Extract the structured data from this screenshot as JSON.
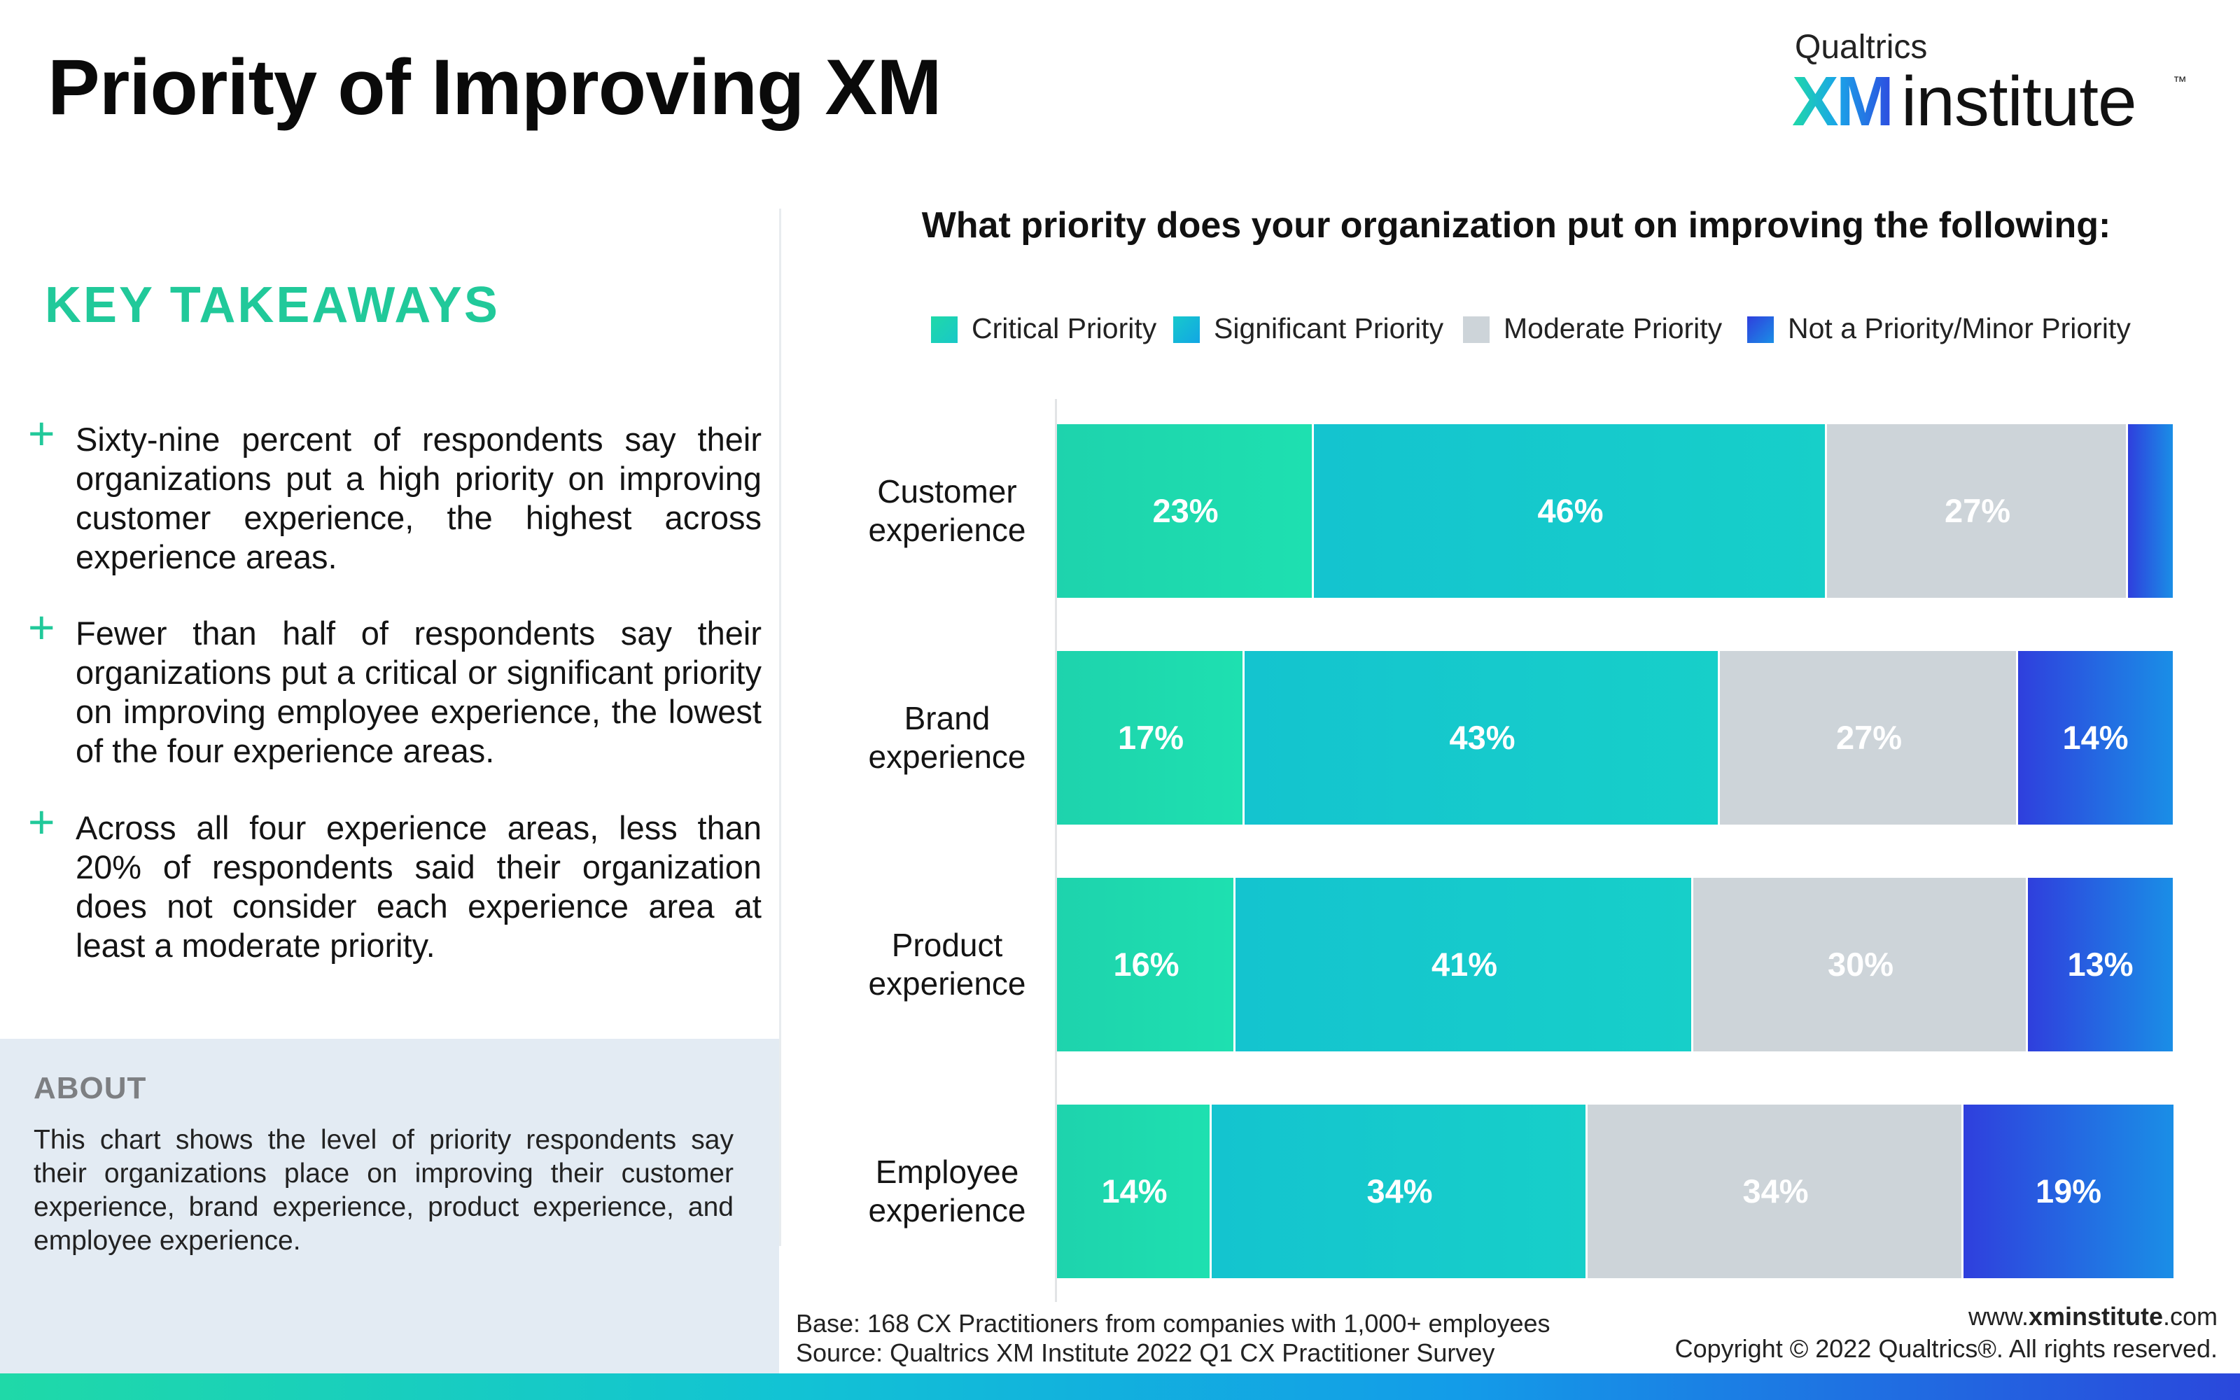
{
  "page_title": "Priority of Improving XM",
  "logo": {
    "brand": "Qualtrics",
    "xm": "XM",
    "institute": "institute",
    "tm": "™"
  },
  "takeaways": {
    "title": "KEY TAKEAWAYS",
    "items": [
      "Sixty-nine percent of respondents say their organizations put a high priority on improving customer experience, the highest across experience areas.",
      "Fewer than half of respondents say their organizations put a critical or significant priority on improving employee experience, the lowest of the four experience areas.",
      "Across all four experience areas, less than 20% of respondents said their organization does not consider each experience area at least a moderate priority."
    ]
  },
  "about": {
    "title": "ABOUT",
    "text": "This chart shows the level of priority respondents say their organizations place on improving their customer experience, brand experience, product experience, and employee experience."
  },
  "chart_data": {
    "type": "bar",
    "orientation": "horizontal",
    "stacked": true,
    "normalized": true,
    "title": "What priority does your organization put on improving the following:",
    "categories": [
      "Customer experience",
      "Brand experience",
      "Product experience",
      "Employee experience"
    ],
    "series": [
      {
        "name": "Critical Priority",
        "color": "#1ed6ae",
        "values": [
          23,
          17,
          16,
          14
        ],
        "labels": [
          "23%",
          "17%",
          "16%",
          "14%"
        ]
      },
      {
        "name": "Significant Priority",
        "color": "#14c7d1",
        "values": [
          46,
          43,
          41,
          34
        ],
        "labels": [
          "46%",
          "43%",
          "41%",
          "34%"
        ]
      },
      {
        "name": "Moderate Priority",
        "color": "#cdd4d9",
        "values": [
          27,
          27,
          30,
          34
        ],
        "labels": [
          "27%",
          "27%",
          "30%",
          "34%"
        ]
      },
      {
        "name": "Not a Priority/Minor Priority",
        "color": "#2f54e0",
        "values": [
          4,
          14,
          13,
          19
        ],
        "labels": [
          "",
          "14%",
          "13%",
          "19%"
        ]
      }
    ],
    "xlim": [
      0,
      100
    ],
    "legend_position": "top",
    "grid": false
  },
  "footer": {
    "base": "Base: 168 CX Practitioners from companies with 1,000+ employees",
    "source": "Source: Qualtrics XM Institute 2022 Q1 CX Practitioner Survey",
    "url_prefix": "www.",
    "url_bold": "xminstitute",
    "url_suffix": ".com",
    "copyright": "Copyright © 2022 Qualtrics®. All rights reserved."
  }
}
